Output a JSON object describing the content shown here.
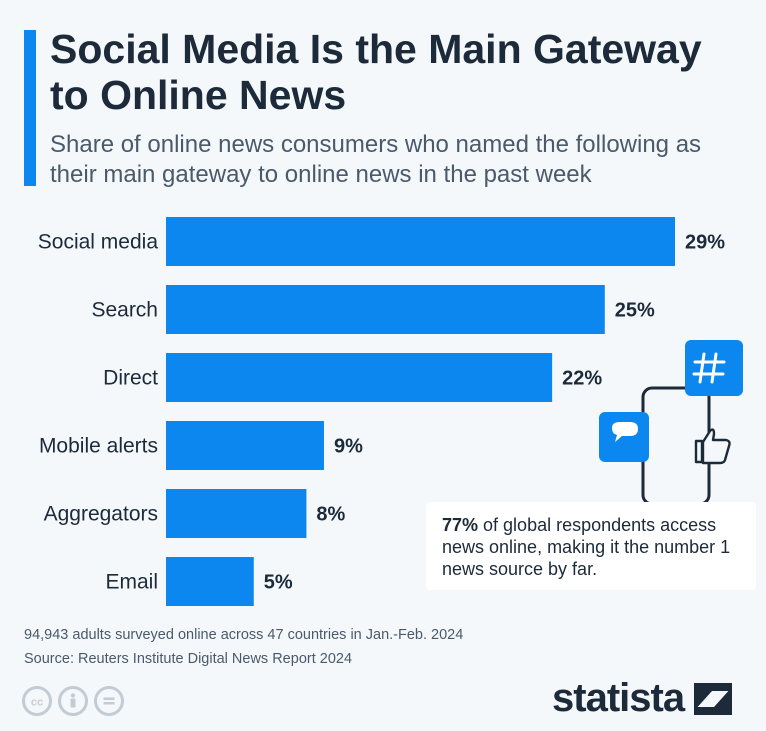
{
  "header": {
    "title": "Social Media Is the Main Gateway to Online News",
    "subtitle": "Share of online news consumers who named the following as their main gateway to online news in the past week"
  },
  "chart_data": {
    "type": "bar",
    "orientation": "horizontal",
    "categories": [
      "Social media",
      "Search",
      "Direct",
      "Mobile alerts",
      "Aggregators",
      "Email"
    ],
    "values": [
      29,
      25,
      22,
      9,
      8,
      5
    ],
    "value_labels": [
      "29%",
      "25%",
      "22%",
      "9%",
      "8%",
      "5%"
    ],
    "unit": "%",
    "xlim": [
      0,
      29
    ],
    "grid": false,
    "bar_color": "#0d87f0"
  },
  "callout": {
    "highlight": "77%",
    "text": " of global respondents access news online, making it the number 1 news source by far."
  },
  "footnote": {
    "line1": "94,943 adults surveyed online across 47 countries in Jan.-Feb. 2024",
    "line2": "Source: Reuters Institute Digital News Report 2024"
  },
  "brand": {
    "name": "statista"
  },
  "icons": [
    "hashtag-icon",
    "chat-bubble-icon",
    "thumbs-up-icon",
    "smartphone-icon",
    "cc-icon",
    "attribution-icon",
    "no-derivatives-icon",
    "statista-logo-icon"
  ],
  "colors": {
    "accent": "#0d87f0",
    "text": "#1c2a3a",
    "background": "#f4f8fb"
  }
}
